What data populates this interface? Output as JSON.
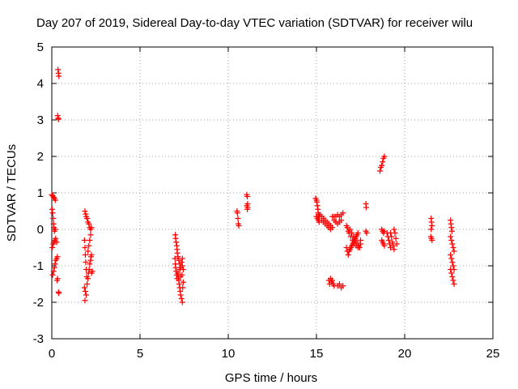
{
  "chart_data": {
    "type": "scatter",
    "title": "Day 207 of 2019, Sidereal Day-to-day VTEC variation (SDTVAR) for receiver wilu",
    "xlabel": "GPS time / hours",
    "ylabel": "SDTVAR / TECUs",
    "xlim": [
      0,
      25
    ],
    "ylim": [
      -3,
      5
    ],
    "xticks": [
      0,
      5,
      10,
      15,
      20,
      25
    ],
    "yticks": [
      -3,
      -2,
      -1,
      0,
      1,
      2,
      3,
      4,
      5
    ],
    "grid": true,
    "marker": "+",
    "color": "#ff0000",
    "points": [
      [
        0.0,
        0.95
      ],
      [
        0.05,
        0.92
      ],
      [
        0.1,
        0.88
      ],
      [
        0.15,
        0.85
      ],
      [
        0.2,
        0.8
      ],
      [
        0.02,
        0.55
      ],
      [
        0.05,
        0.45
      ],
      [
        0.08,
        0.3
      ],
      [
        0.1,
        0.15
      ],
      [
        0.12,
        0.05
      ],
      [
        0.15,
        -0.05
      ],
      [
        0.2,
        0.0
      ],
      [
        0.03,
        -0.5
      ],
      [
        0.08,
        -0.4
      ],
      [
        0.12,
        -0.35
      ],
      [
        0.18,
        -0.3
      ],
      [
        0.22,
        -0.25
      ],
      [
        0.28,
        -0.35
      ],
      [
        0.05,
        -1.25
      ],
      [
        0.1,
        -1.15
      ],
      [
        0.15,
        -1.05
      ],
      [
        0.18,
        -0.95
      ],
      [
        0.22,
        -0.85
      ],
      [
        0.28,
        -0.8
      ],
      [
        0.32,
        -0.75
      ],
      [
        0.3,
        -1.4
      ],
      [
        0.33,
        -1.35
      ],
      [
        0.35,
        4.38
      ],
      [
        0.38,
        4.28
      ],
      [
        0.4,
        4.2
      ],
      [
        0.33,
        3.12
      ],
      [
        0.36,
        3.05
      ],
      [
        0.38,
        3.02
      ],
      [
        0.38,
        -1.72
      ],
      [
        0.4,
        -1.75
      ],
      [
        1.88,
        0.5
      ],
      [
        1.92,
        0.42
      ],
      [
        1.95,
        0.35
      ],
      [
        2.0,
        0.3
      ],
      [
        2.05,
        0.2
      ],
      [
        2.1,
        0.15
      ],
      [
        2.15,
        0.05
      ],
      [
        2.2,
        0.0
      ],
      [
        1.85,
        -0.3
      ],
      [
        1.88,
        -0.5
      ],
      [
        1.9,
        -0.7
      ],
      [
        1.92,
        -0.9
      ],
      [
        1.95,
        -1.1
      ],
      [
        1.98,
        -1.3
      ],
      [
        1.85,
        -1.6
      ],
      [
        1.9,
        -1.7
      ],
      [
        1.95,
        -1.8
      ],
      [
        1.88,
        -1.95
      ],
      [
        2.0,
        -1.5
      ],
      [
        2.05,
        -1.35
      ],
      [
        2.08,
        -1.2
      ],
      [
        2.12,
        -1.1
      ],
      [
        2.15,
        -0.95
      ],
      [
        2.2,
        -0.85
      ],
      [
        2.22,
        -0.75
      ],
      [
        2.25,
        -0.7
      ],
      [
        2.05,
        -0.6
      ],
      [
        2.1,
        -0.45
      ],
      [
        2.15,
        -0.3
      ],
      [
        2.2,
        -0.15
      ],
      [
        2.25,
        0.05
      ],
      [
        2.3,
        -1.15
      ],
      [
        2.25,
        -1.2
      ],
      [
        7.0,
        -0.15
      ],
      [
        7.02,
        -0.25
      ],
      [
        7.05,
        -0.35
      ],
      [
        7.08,
        -0.45
      ],
      [
        7.1,
        -0.55
      ],
      [
        7.12,
        -0.65
      ],
      [
        7.15,
        -0.75
      ],
      [
        6.98,
        -0.8
      ],
      [
        7.0,
        -0.95
      ],
      [
        7.02,
        -1.05
      ],
      [
        7.05,
        -1.15
      ],
      [
        7.08,
        -1.25
      ],
      [
        7.1,
        -1.35
      ],
      [
        7.15,
        -1.2
      ],
      [
        7.18,
        -1.3
      ],
      [
        7.2,
        -1.4
      ],
      [
        7.22,
        -1.5
      ],
      [
        7.25,
        -1.6
      ],
      [
        7.28,
        -1.7
      ],
      [
        7.3,
        -1.8
      ],
      [
        7.35,
        -1.9
      ],
      [
        7.4,
        -2.0
      ],
      [
        7.2,
        -0.85
      ],
      [
        7.25,
        -0.95
      ],
      [
        7.3,
        -1.05
      ],
      [
        7.35,
        -0.9
      ],
      [
        7.4,
        -1.0
      ],
      [
        7.45,
        -1.1
      ],
      [
        7.38,
        -1.25
      ],
      [
        7.25,
        -1.1
      ],
      [
        7.3,
        -1.3
      ],
      [
        7.4,
        -0.8
      ],
      [
        7.45,
        -1.45
      ],
      [
        7.42,
        -1.6
      ],
      [
        10.5,
        0.5
      ],
      [
        10.52,
        0.45
      ],
      [
        10.55,
        0.3
      ],
      [
        10.57,
        0.15
      ],
      [
        10.6,
        0.1
      ],
      [
        11.05,
        0.95
      ],
      [
        11.08,
        0.9
      ],
      [
        11.1,
        0.7
      ],
      [
        11.05,
        0.65
      ],
      [
        11.1,
        0.6
      ],
      [
        11.08,
        0.55
      ],
      [
        14.95,
        0.85
      ],
      [
        15.0,
        0.8
      ],
      [
        15.02,
        0.75
      ],
      [
        15.05,
        0.65
      ],
      [
        15.08,
        0.55
      ],
      [
        15.1,
        0.45
      ],
      [
        15.12,
        0.4
      ],
      [
        15.15,
        0.35
      ],
      [
        15.0,
        0.35
      ],
      [
        15.05,
        0.3
      ],
      [
        15.1,
        0.25
      ],
      [
        15.15,
        0.2
      ],
      [
        15.2,
        0.4
      ],
      [
        15.3,
        0.35
      ],
      [
        15.4,
        0.3
      ],
      [
        15.5,
        0.25
      ],
      [
        15.6,
        0.2
      ],
      [
        15.7,
        0.15
      ],
      [
        15.8,
        0.1
      ],
      [
        15.9,
        0.05
      ],
      [
        15.3,
        0.25
      ],
      [
        15.4,
        0.2
      ],
      [
        15.5,
        0.15
      ],
      [
        15.6,
        0.1
      ],
      [
        15.7,
        0.05
      ],
      [
        15.8,
        0.0
      ],
      [
        15.9,
        0.35
      ],
      [
        16.0,
        0.35
      ],
      [
        16.1,
        0.35
      ],
      [
        16.2,
        0.4
      ],
      [
        16.3,
        0.35
      ],
      [
        16.4,
        0.4
      ],
      [
        16.5,
        0.45
      ],
      [
        16.0,
        0.25
      ],
      [
        16.1,
        0.2
      ],
      [
        16.2,
        0.15
      ],
      [
        16.3,
        0.2
      ],
      [
        16.4,
        0.25
      ],
      [
        15.7,
        -1.4
      ],
      [
        15.75,
        -1.5
      ],
      [
        15.8,
        -1.35
      ],
      [
        15.85,
        -1.45
      ],
      [
        15.9,
        -1.4
      ],
      [
        15.95,
        -1.5
      ],
      [
        16.0,
        -1.55
      ],
      [
        16.2,
        -1.55
      ],
      [
        16.3,
        -1.5
      ],
      [
        16.4,
        -1.6
      ],
      [
        16.5,
        -1.55
      ],
      [
        16.7,
        0.1
      ],
      [
        16.75,
        0.05
      ],
      [
        16.8,
        -0.05
      ],
      [
        16.85,
        -0.1
      ],
      [
        16.9,
        0.0
      ],
      [
        16.95,
        -0.2
      ],
      [
        17.0,
        -0.1
      ],
      [
        17.05,
        -0.3
      ],
      [
        17.1,
        -0.2
      ],
      [
        17.15,
        -0.4
      ],
      [
        17.2,
        -0.3
      ],
      [
        17.25,
        -0.45
      ],
      [
        17.3,
        -0.35
      ],
      [
        17.35,
        -0.5
      ],
      [
        16.7,
        -0.5
      ],
      [
        16.75,
        -0.6
      ],
      [
        16.8,
        -0.7
      ],
      [
        16.85,
        -0.6
      ],
      [
        16.9,
        -0.55
      ],
      [
        16.95,
        -0.5
      ],
      [
        17.0,
        -0.45
      ],
      [
        17.05,
        -0.4
      ],
      [
        17.1,
        -0.35
      ],
      [
        17.15,
        -0.3
      ],
      [
        17.2,
        -0.25
      ],
      [
        17.25,
        -0.2
      ],
      [
        17.3,
        -0.15
      ],
      [
        17.35,
        -0.1
      ],
      [
        17.4,
        -0.45
      ],
      [
        17.45,
        -0.5
      ],
      [
        17.5,
        -0.4
      ],
      [
        17.5,
        -0.3
      ],
      [
        17.8,
        0.7
      ],
      [
        17.82,
        0.6
      ],
      [
        17.8,
        -0.05
      ],
      [
        17.85,
        -0.1
      ],
      [
        18.6,
        1.6
      ],
      [
        18.65,
        1.7
      ],
      [
        18.7,
        1.75
      ],
      [
        18.75,
        1.85
      ],
      [
        18.8,
        1.95
      ],
      [
        18.85,
        2.0
      ],
      [
        18.7,
        0.0
      ],
      [
        18.75,
        -0.05
      ],
      [
        18.8,
        -0.1
      ],
      [
        18.85,
        -0.05
      ],
      [
        18.7,
        -0.3
      ],
      [
        18.75,
        -0.35
      ],
      [
        18.8,
        -0.4
      ],
      [
        18.85,
        -0.45
      ],
      [
        19.0,
        -0.1
      ],
      [
        19.05,
        -0.2
      ],
      [
        19.1,
        -0.3
      ],
      [
        19.15,
        -0.4
      ],
      [
        19.2,
        -0.5
      ],
      [
        19.2,
        -0.1
      ],
      [
        19.25,
        -0.2
      ],
      [
        19.3,
        -0.35
      ],
      [
        19.35,
        -0.45
      ],
      [
        19.4,
        -0.55
      ],
      [
        19.4,
        0.0
      ],
      [
        19.45,
        -0.1
      ],
      [
        19.5,
        -0.25
      ],
      [
        19.55,
        -0.4
      ],
      [
        21.5,
        0.3
      ],
      [
        21.52,
        0.2
      ],
      [
        21.55,
        0.1
      ],
      [
        21.5,
        0.0
      ],
      [
        21.48,
        -0.2
      ],
      [
        21.52,
        -0.25
      ],
      [
        21.55,
        -0.3
      ],
      [
        22.6,
        0.25
      ],
      [
        22.62,
        0.15
      ],
      [
        22.65,
        0.05
      ],
      [
        22.68,
        -0.05
      ],
      [
        22.6,
        -0.2
      ],
      [
        22.65,
        -0.3
      ],
      [
        22.7,
        -0.4
      ],
      [
        22.75,
        -0.5
      ],
      [
        22.8,
        -0.6
      ],
      [
        22.6,
        -0.7
      ],
      [
        22.65,
        -0.8
      ],
      [
        22.7,
        -0.9
      ],
      [
        22.75,
        -1.0
      ],
      [
        22.8,
        -1.1
      ],
      [
        22.6,
        -1.1
      ],
      [
        22.65,
        -1.2
      ],
      [
        22.7,
        -1.3
      ],
      [
        22.75,
        -1.4
      ],
      [
        22.8,
        -1.5
      ]
    ]
  }
}
